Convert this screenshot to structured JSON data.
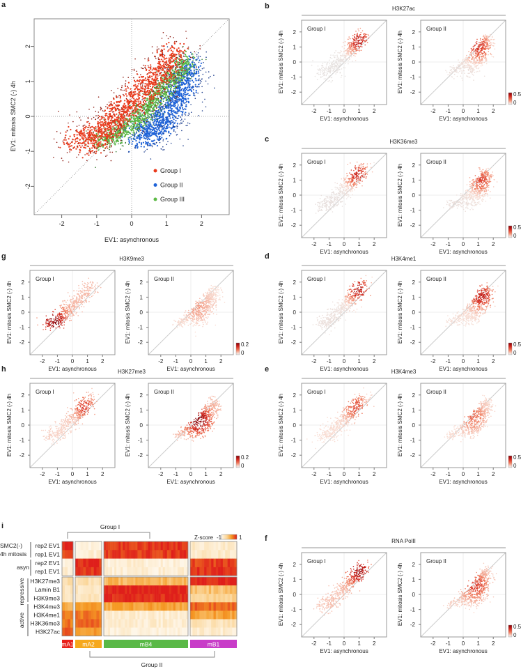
{
  "chart_data": [
    {
      "type": "scatter",
      "panel": "a",
      "xlabel": "EV1: asynchronous",
      "ylabel": "EV1: mitosis SMC2 (-) 4h",
      "xlim": [
        -2.8,
        2.8
      ],
      "ylim": [
        -2.8,
        2.8
      ],
      "xticks": [
        "-2",
        "-1",
        "0",
        "1",
        "2"
      ],
      "yticks": [
        "-2",
        "-1",
        "0",
        "1",
        "2"
      ],
      "reference_lines": [
        "x=0",
        "y=0",
        "y=x"
      ],
      "legend": {
        "position": "bottom-right"
      },
      "series": [
        {
          "name": "Group I",
          "color": "#ea3a1c",
          "edge_color": "#8e1c12",
          "centerline": [
            [
              -1.6,
              -0.75
            ],
            [
              -0.9,
              -0.55
            ],
            [
              -0.5,
              -0.1
            ],
            [
              0.3,
              0.7
            ],
            [
              0.9,
              1.35
            ],
            [
              1.3,
              1.85
            ]
          ],
          "spread": 0.2,
          "n": 1500
        },
        {
          "name": "Group II",
          "color": "#1f63d8",
          "edge_color": "#1b3c8c",
          "centerline": [
            [
              0.1,
              -0.55
            ],
            [
              0.7,
              -0.35
            ],
            [
              1.1,
              0.2
            ],
            [
              1.4,
              0.8
            ],
            [
              1.65,
              1.5
            ]
          ],
          "spread": 0.2,
          "n": 1300
        },
        {
          "name": "Group III",
          "color": "#5dba46",
          "edge_color": "#2f7a2a",
          "centerline": [
            [
              -1.0,
              -0.72
            ],
            [
              -0.4,
              -0.5
            ],
            [
              0.3,
              0.05
            ],
            [
              0.9,
              0.75
            ],
            [
              1.6,
              1.6
            ]
          ],
          "spread": 0.13,
          "n": 1100
        }
      ]
    },
    {
      "type": "scatter",
      "panel": "b",
      "title": "H3K27ac",
      "colorbar": {
        "ticks": [
          "0.5",
          "0"
        ],
        "max": 0.5
      },
      "subplots": [
        {
          "label": "Group I",
          "source": "Group I",
          "hotspot": [
            1.0,
            1.4
          ],
          "strength": 0.95,
          "base": 0.02
        },
        {
          "label": "Group II",
          "source": "Group II",
          "hotspot": [
            1.0,
            1.0
          ],
          "strength": 0.75,
          "base": 0.05
        }
      ]
    },
    {
      "type": "scatter",
      "panel": "c",
      "title": "H3K36me3",
      "colorbar": {
        "ticks": [
          "0.5",
          "0"
        ],
        "max": 0.5
      },
      "subplots": [
        {
          "label": "Group I",
          "source": "Group I",
          "hotspot": [
            0.9,
            1.4
          ],
          "strength": 0.85,
          "base": 0.03
        },
        {
          "label": "Group II",
          "source": "Group II",
          "hotspot": [
            1.2,
            1.0
          ],
          "strength": 0.65,
          "base": 0.05
        }
      ]
    },
    {
      "type": "scatter",
      "panel": "g",
      "title": "H3K9me3",
      "colorbar": {
        "ticks": [
          "0.2",
          "0"
        ],
        "max": 0.2
      },
      "subplots": [
        {
          "label": "Group I",
          "source": "Group I",
          "hotspot": [
            -1.2,
            -0.6
          ],
          "strength": 0.95,
          "base": 0.22
        },
        {
          "label": "Group II",
          "source": "Group II",
          "hotspot": [
            0.5,
            0.3
          ],
          "strength": 0.25,
          "base": 0.12
        }
      ]
    },
    {
      "type": "scatter",
      "panel": "d",
      "title": "H3K4me1",
      "colorbar": {
        "ticks": [
          "0.5",
          "0"
        ],
        "max": 0.5
      },
      "subplots": [
        {
          "label": "Group I",
          "source": "Group I",
          "hotspot": [
            1.0,
            1.5
          ],
          "strength": 0.95,
          "base": 0.05
        },
        {
          "label": "Group II",
          "source": "Group II",
          "hotspot": [
            1.2,
            1.1
          ],
          "strength": 0.85,
          "base": 0.1
        }
      ]
    },
    {
      "type": "scatter",
      "panel": "h",
      "title": "H3K27me3",
      "colorbar": {
        "ticks": [
          "0.2",
          "0"
        ],
        "max": 0.2
      },
      "subplots": [
        {
          "label": "Group I",
          "source": "Group I",
          "hotspot": [
            0.8,
            1.2
          ],
          "strength": 0.55,
          "base": 0.15
        },
        {
          "label": "Group II",
          "source": "Group II",
          "hotspot": [
            0.5,
            0.3
          ],
          "strength": 0.95,
          "base": 0.2
        }
      ]
    },
    {
      "type": "scatter",
      "panel": "e",
      "title": "H3K4me3",
      "colorbar": {
        "ticks": [
          "0.5",
          "0"
        ],
        "max": 0.5
      },
      "subplots": [
        {
          "label": "Group I",
          "source": "Group I",
          "hotspot": [
            0.8,
            1.2
          ],
          "strength": 0.55,
          "base": 0.12
        },
        {
          "label": "Group II",
          "source": "Group II",
          "hotspot": [
            0.6,
            0.6
          ],
          "strength": 0.45,
          "base": 0.12
        }
      ]
    },
    {
      "type": "scatter",
      "panel": "f",
      "title": "RNA PolII",
      "colorbar": {
        "ticks": [
          "0.5",
          "0"
        ],
        "max": 0.5
      },
      "subplots": [
        {
          "label": "Group I",
          "source": "Group I",
          "hotspot": [
            1.0,
            1.5
          ],
          "strength": 0.85,
          "base": 0.2
        },
        {
          "label": "Group II",
          "source": "Group II",
          "hotspot": [
            0.8,
            0.6
          ],
          "strength": 0.6,
          "base": 0.15
        }
      ]
    },
    {
      "type": "heatmap",
      "panel": "i",
      "legend": {
        "title": "Z-score",
        "min": "-1",
        "max": "1"
      },
      "clusters": [
        {
          "name": "mA1",
          "color": "#e8211b"
        },
        {
          "name": "mA2",
          "color": "#f6a81c"
        },
        {
          "name": "mB4",
          "color": "#5ab947"
        },
        {
          "name": "mB1",
          "color": "#c83cc8"
        }
      ],
      "top_bracket": "Group I",
      "bottom_bracket": "Group II",
      "row_groups": [
        {
          "label": [
            "SMC2(-)",
            "4h mitosis"
          ]
        },
        {
          "label": [
            "asyn"
          ]
        },
        {
          "label": [
            "repressive"
          ]
        },
        {
          "label": [
            "active"
          ]
        }
      ],
      "rows": [
        {
          "label": "rep2 EV1",
          "z": [
            0.9,
            -0.85,
            0.85,
            -0.75
          ]
        },
        {
          "label": "rep1 EV1",
          "z": [
            0.7,
            -0.85,
            0.85,
            -0.75
          ]
        },
        {
          "label": "rep2 EV1",
          "z": [
            -0.85,
            0.9,
            -0.85,
            0.8
          ]
        },
        {
          "label": "rep1 EV1",
          "z": [
            -0.85,
            0.9,
            -0.85,
            0.9
          ]
        },
        {
          "label": "H3K27me3",
          "z": [
            -0.5,
            -0.5,
            0.0,
            1.0
          ]
        },
        {
          "label": "Lamin B1",
          "z": [
            -0.6,
            -0.7,
            1.0,
            -0.1
          ]
        },
        {
          "label": "H3K9me3",
          "z": [
            -0.7,
            -0.65,
            0.95,
            -0.3
          ]
        },
        {
          "label": "H3K4me3",
          "z": [
            0.1,
            0.2,
            0.2,
            0.6
          ]
        },
        {
          "label": "H3K4me1",
          "z": [
            0.4,
            0.5,
            -0.8,
            0.2
          ]
        },
        {
          "label": "H3K36me3",
          "z": [
            0.5,
            0.6,
            -0.8,
            -0.6
          ]
        },
        {
          "label": "H3K27ac",
          "z": [
            0.7,
            0.3,
            -0.9,
            -0.8
          ]
        }
      ]
    }
  ],
  "labels": {
    "panel_letters": {
      "a": "a",
      "b": "b",
      "c": "c",
      "d": "d",
      "e": "e",
      "f": "f",
      "g": "g",
      "h": "h",
      "i": "i"
    },
    "small_xlabel": "EV1: asynchronous",
    "small_ylabel": "EV1: mitosis SMC2 (-) 4h"
  }
}
